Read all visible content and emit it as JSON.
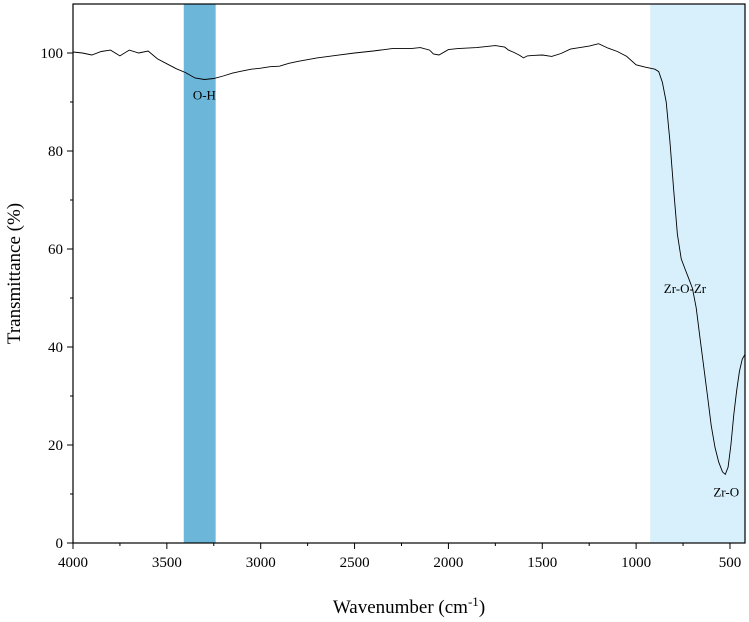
{
  "chart_data": {
    "type": "line",
    "xlabel": "Wavenumber (cm",
    "xlabel_sup": "-1",
    "xlabel_end": ")",
    "ylabel": "Transmittance (%)",
    "xlim": [
      4000,
      420
    ],
    "ylim": [
      0,
      110
    ],
    "x_ticks": [
      4000,
      3500,
      3000,
      2500,
      2000,
      1500,
      1000,
      500
    ],
    "y_ticks": [
      0,
      20,
      40,
      60,
      80,
      100
    ],
    "grid": false,
    "highlight_bands": [
      {
        "x_start": 3410,
        "x_end": 3240,
        "color": "#6cb6d9"
      },
      {
        "x_start": 925,
        "x_end": 420,
        "color": "#d8f0fb"
      }
    ],
    "annotations": [
      {
        "text": "O-H",
        "x": 3300,
        "y": 90.5
      },
      {
        "text": "Zr-O-Zr",
        "x": 740,
        "y": 51
      },
      {
        "text": "Zr-O",
        "x": 520,
        "y": 9.5
      }
    ],
    "series": [
      {
        "color": "#000000",
        "x": [
          4000,
          3950,
          3900,
          3850,
          3800,
          3750,
          3700,
          3650,
          3600,
          3550,
          3500,
          3450,
          3400,
          3350,
          3300,
          3250,
          3200,
          3150,
          3100,
          3050,
          3000,
          2950,
          2900,
          2850,
          2800,
          2700,
          2600,
          2500,
          2400,
          2300,
          2200,
          2150,
          2100,
          2080,
          2050,
          2000,
          1950,
          1900,
          1850,
          1800,
          1750,
          1700,
          1680,
          1650,
          1620,
          1600,
          1580,
          1550,
          1500,
          1450,
          1400,
          1350,
          1300,
          1250,
          1200,
          1150,
          1100,
          1050,
          1000,
          950,
          900,
          880,
          860,
          840,
          820,
          800,
          780,
          760,
          740,
          720,
          700,
          680,
          660,
          640,
          620,
          600,
          580,
          560,
          540,
          525,
          510,
          495,
          480,
          465,
          450,
          435,
          420
        ],
        "y": [
          100.2,
          100.0,
          99.6,
          100.3,
          100.6,
          99.4,
          100.6,
          100.0,
          100.4,
          98.8,
          97.8,
          96.8,
          96.0,
          94.9,
          94.6,
          94.8,
          95.3,
          95.9,
          96.3,
          96.7,
          96.9,
          97.2,
          97.3,
          97.9,
          98.3,
          99.0,
          99.5,
          100.0,
          100.4,
          100.9,
          100.9,
          101.1,
          100.6,
          99.8,
          99.6,
          100.7,
          100.9,
          101.0,
          101.1,
          101.3,
          101.5,
          101.2,
          100.6,
          100.1,
          99.5,
          99.0,
          99.4,
          99.5,
          99.6,
          99.3,
          99.9,
          100.8,
          101.1,
          101.4,
          101.9,
          101.0,
          100.3,
          99.3,
          97.6,
          97.1,
          96.7,
          96.2,
          94.0,
          90.0,
          82.0,
          72.0,
          63.0,
          58.0,
          56.0,
          54.0,
          52.0,
          48.0,
          42.0,
          36.0,
          30.0,
          24.0,
          19.5,
          16.5,
          14.5,
          14.0,
          15.5,
          20.0,
          26.0,
          31.0,
          35.0,
          37.5,
          38.5
        ]
      }
    ]
  }
}
